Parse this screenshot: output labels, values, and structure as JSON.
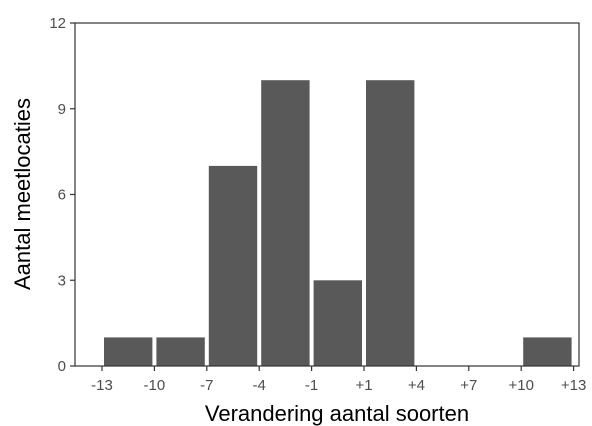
{
  "chart_data": {
    "type": "bar",
    "title": "",
    "xlabel": "Verandering aantal soorten",
    "ylabel": "Aantal meetlocaties",
    "bins": [
      {
        "from": -13,
        "to": -10,
        "value": 1
      },
      {
        "from": -10,
        "to": -7,
        "value": 1
      },
      {
        "from": -7,
        "to": -4,
        "value": 7
      },
      {
        "from": -4,
        "to": -1,
        "value": 10
      },
      {
        "from": -1,
        "to": 1,
        "value": 3
      },
      {
        "from": 1,
        "to": 4,
        "value": 10
      },
      {
        "from": 4,
        "to": 7,
        "value": 0
      },
      {
        "from": 7,
        "to": 10,
        "value": 0
      },
      {
        "from": 10,
        "to": 13,
        "value": 1
      }
    ],
    "x_ticks": [
      "-13",
      "-10",
      "-7",
      "-4",
      "-1",
      "+1",
      "+4",
      "+7",
      "+10",
      "+13"
    ],
    "y_ticks": [
      0,
      3,
      6,
      9,
      12
    ],
    "ylim": [
      0,
      12
    ],
    "grid": false,
    "legend": "none",
    "colors": {
      "bar": "#595959",
      "axis": "#333333",
      "tick_text": "#4d4d4d"
    }
  }
}
